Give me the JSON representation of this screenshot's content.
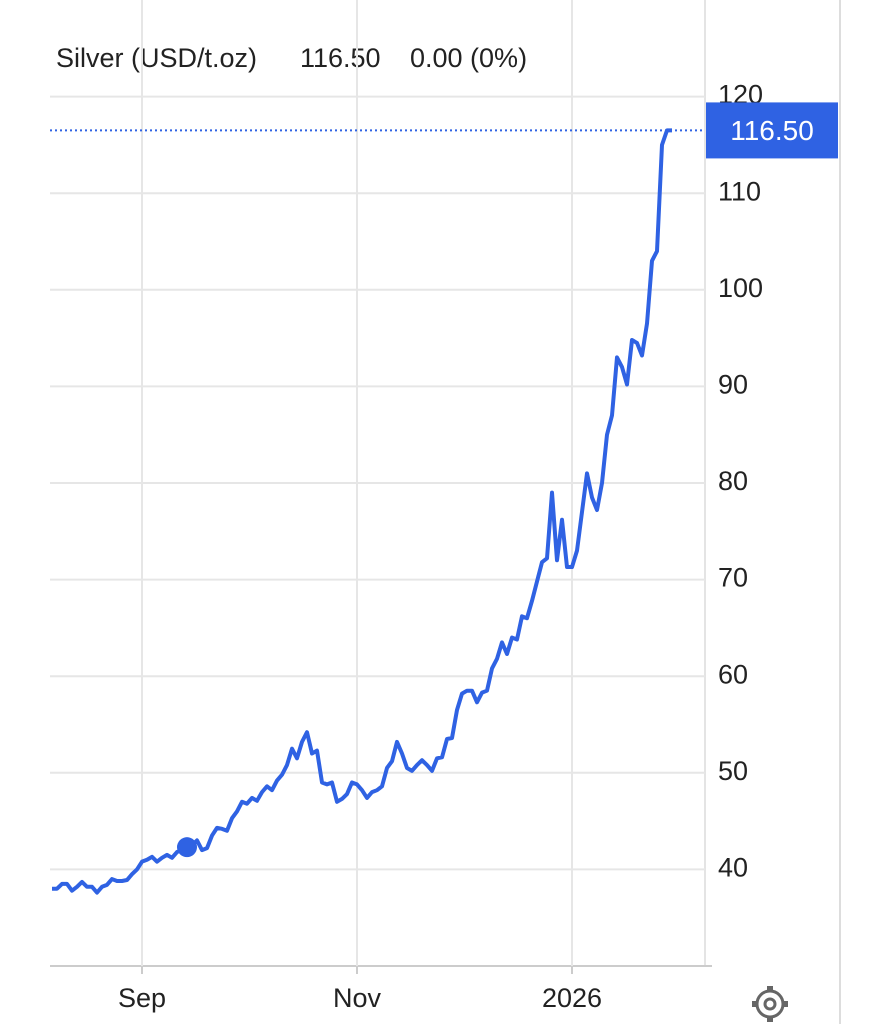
{
  "chart_data": {
    "type": "line",
    "title": "Silver (USD/t.oz)",
    "change": "0.00 (0%)",
    "categories": [
      null,
      null,
      null,
      null,
      null,
      null,
      null,
      null,
      null,
      null,
      null,
      null,
      null,
      null,
      null,
      null,
      null,
      null,
      "Sep",
      null,
      null,
      null,
      null,
      null,
      null,
      null,
      null,
      null,
      null,
      null,
      null,
      null,
      null,
      null,
      null,
      null,
      null,
      null,
      null,
      null,
      null,
      null,
      null,
      null,
      null,
      null,
      null,
      null,
      null,
      null,
      null,
      null,
      null,
      null,
      null,
      null,
      null,
      null,
      null,
      null,
      null,
      "Nov",
      null,
      null,
      null,
      null,
      null,
      null,
      null,
      null,
      null,
      null,
      null,
      null,
      null,
      null,
      null,
      null,
      null,
      null,
      null,
      null,
      null,
      null,
      null,
      null,
      null,
      null,
      null,
      null,
      null,
      null,
      null,
      null,
      null,
      null,
      null,
      null,
      null,
      null,
      null,
      null,
      null,
      null,
      "2026",
      null,
      null,
      null,
      null,
      null,
      null,
      null,
      null,
      null,
      null,
      null,
      null,
      null,
      null,
      null,
      null,
      null,
      null,
      null,
      null
    ],
    "series": [
      {
        "name": "Silver",
        "color": "#2f62e3",
        "values": [
          38.0,
          38.0,
          38.5,
          38.5,
          37.8,
          38.2,
          38.7,
          38.2,
          38.2,
          37.6,
          38.2,
          38.4,
          39.0,
          38.8,
          38.8,
          38.9,
          39.5,
          40.0,
          40.8,
          41.0,
          41.3,
          40.8,
          41.2,
          41.5,
          41.2,
          41.8,
          42.0,
          42.3,
          42.5,
          43.0,
          42.0,
          42.2,
          43.5,
          44.3,
          44.2,
          44.0,
          45.3,
          46.0,
          47.0,
          46.8,
          47.4,
          47.1,
          48.0,
          48.6,
          48.2,
          49.2,
          49.8,
          50.8,
          52.5,
          51.5,
          53.2,
          54.2,
          52.0,
          52.3,
          49.0,
          48.8,
          49.0,
          47.0,
          47.3,
          47.8,
          49.0,
          48.8,
          48.2,
          47.4,
          48.0,
          48.2,
          48.6,
          50.5,
          51.2,
          53.2,
          52.0,
          50.5,
          50.2,
          50.8,
          51.3,
          50.8,
          50.2,
          51.5,
          51.6,
          53.5,
          53.6,
          56.5,
          58.2,
          58.5,
          58.5,
          57.3,
          58.3,
          58.5,
          60.8,
          61.8,
          63.5,
          62.3,
          64.0,
          63.8,
          66.2,
          66.0,
          67.8,
          69.8,
          71.8,
          72.2,
          79.0,
          72.0,
          76.2,
          71.3,
          71.3,
          73.0,
          77.0,
          81.0,
          78.5,
          77.2,
          80.0,
          85.0,
          87.0,
          93.0,
          92.0,
          90.2,
          94.8,
          94.5,
          93.2,
          96.5,
          103.0,
          104.0,
          115.0,
          116.5,
          116.5
        ],
        "value_labels": [
          null,
          null,
          null,
          null,
          null,
          null,
          null,
          null,
          null,
          null,
          null,
          null,
          null,
          null,
          null,
          null,
          null,
          null,
          null,
          null,
          null,
          null,
          null,
          null,
          null,
          null,
          null,
          null,
          null,
          null,
          null,
          null,
          null,
          null,
          null,
          null,
          null,
          null,
          null,
          null,
          null,
          null,
          null,
          null,
          null,
          null,
          null,
          null,
          null,
          null,
          null,
          null,
          null,
          null,
          null,
          null,
          null,
          null,
          null,
          null,
          null,
          null,
          null,
          null,
          null,
          null,
          null,
          null,
          null,
          null,
          null,
          null,
          null,
          null,
          null,
          null,
          null,
          null,
          null,
          null,
          null,
          null,
          null,
          null,
          null,
          null,
          null,
          null,
          null,
          null,
          null,
          null,
          null,
          null,
          null,
          null,
          null,
          null,
          null,
          null,
          null,
          null,
          null,
          null,
          null,
          null,
          null,
          null,
          null,
          null,
          null,
          null,
          null,
          null,
          null,
          null,
          null,
          null,
          null,
          null,
          null,
          null,
          null,
          null,
          "116.50"
        ]
      }
    ],
    "ylim": [
      30,
      130
    ],
    "yticks": [
      40,
      50,
      60,
      70,
      80,
      90,
      100,
      110,
      120
    ],
    "grid": true,
    "change_color": "#3cb83c",
    "marker_index": 27
  }
}
